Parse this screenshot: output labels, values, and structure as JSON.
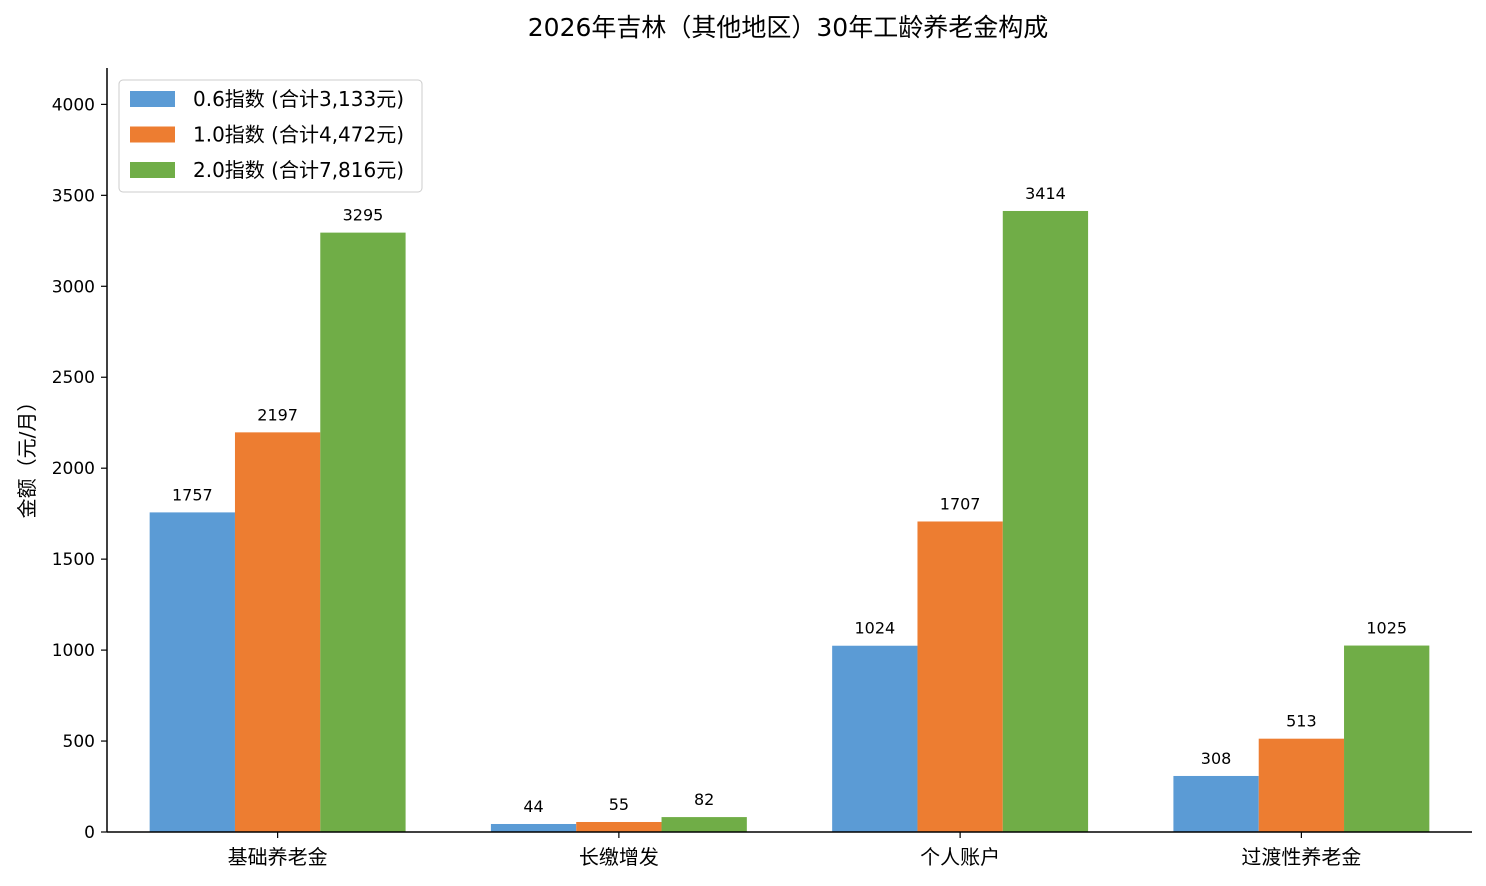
{
  "chart_data": {
    "type": "bar",
    "title": "2026年吉林（其他地区）30年工龄养老金构成",
    "xlabel": "",
    "ylabel": "金额（元/月）",
    "ylim": [
      0,
      4200
    ],
    "yticks": [
      0,
      500,
      1000,
      1500,
      2000,
      2500,
      3000,
      3500,
      4000
    ],
    "categories": [
      "基础养老金",
      "长缴增发",
      "个人账户",
      "过渡性养老金"
    ],
    "series": [
      {
        "name": "0.6指数 (合计3,133元)",
        "color": "#5b9bd5",
        "values": [
          1757,
          44,
          1024,
          308
        ]
      },
      {
        "name": "1.0指数 (合计4,472元)",
        "color": "#ed7d31",
        "values": [
          2197,
          55,
          1707,
          513
        ]
      },
      {
        "name": "2.0指数 (合计7,816元)",
        "color": "#70ad47",
        "values": [
          3295,
          82,
          3414,
          1025
        ]
      }
    ],
    "legend": "top-left",
    "grid": false
  }
}
